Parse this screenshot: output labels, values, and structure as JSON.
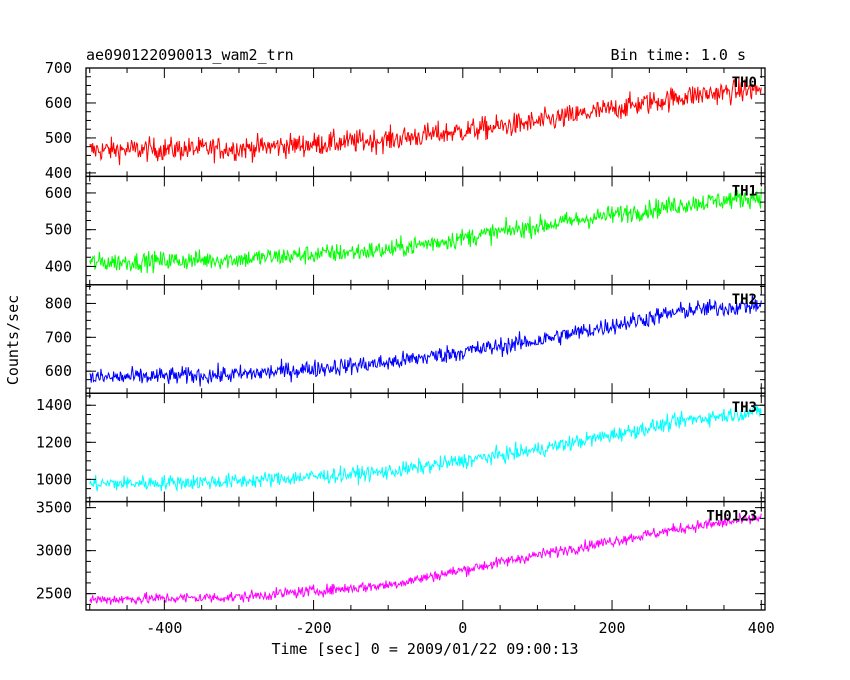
{
  "header": {
    "title": "ae090122090013_wam2_trn",
    "bin_time": "Bin time: 1.0 s"
  },
  "chart_data": {
    "type": "line",
    "title": "ae090122090013_wam2_trn",
    "xlabel": "Time [sec] 0 = 2009/01/22 09:00:13",
    "ylabel": "Counts/sec",
    "xlim": [
      -505,
      405
    ],
    "x_ticks": [
      -400,
      -200,
      0,
      200,
      400
    ],
    "x_range": [
      -500,
      400
    ],
    "bin_time_s": 1.0,
    "series": [
      {
        "name": "TH0",
        "color": "#ff0000",
        "ylim": [
          390,
          700
        ],
        "y_ticks": [
          400,
          500,
          600,
          700
        ],
        "trend": [
          [
            -500,
            465
          ],
          [
            -300,
            470
          ],
          [
            -100,
            495
          ],
          [
            100,
            545
          ],
          [
            300,
            620
          ],
          [
            400,
            640
          ]
        ],
        "noise": 28
      },
      {
        "name": "TH1",
        "color": "#00ff00",
        "ylim": [
          350,
          645
        ],
        "y_ticks": [
          400,
          500,
          600
        ],
        "trend": [
          [
            -500,
            410
          ],
          [
            -300,
            420
          ],
          [
            -100,
            445
          ],
          [
            100,
            510
          ],
          [
            300,
            570
          ],
          [
            400,
            590
          ]
        ],
        "noise": 22
      },
      {
        "name": "TH2",
        "color": "#0000ff",
        "ylim": [
          535,
          855
        ],
        "y_ticks": [
          600,
          700,
          800
        ],
        "trend": [
          [
            -500,
            580
          ],
          [
            -300,
            590
          ],
          [
            -100,
            625
          ],
          [
            100,
            690
          ],
          [
            300,
            780
          ],
          [
            400,
            795
          ]
        ],
        "noise": 22
      },
      {
        "name": "TH3",
        "color": "#00ffff",
        "ylim": [
          880,
          1465
        ],
        "y_ticks": [
          1000,
          1200,
          1400
        ],
        "trend": [
          [
            -500,
            975
          ],
          [
            -300,
            990
          ],
          [
            -100,
            1040
          ],
          [
            100,
            1160
          ],
          [
            300,
            1320
          ],
          [
            400,
            1370
          ]
        ],
        "noise": 35
      },
      {
        "name": "TH0123",
        "color": "#ff00ff",
        "ylim": [
          2310,
          3570
        ],
        "y_ticks": [
          2500,
          3000,
          3500
        ],
        "trend": [
          [
            -500,
            2430
          ],
          [
            -300,
            2460
          ],
          [
            -100,
            2600
          ],
          [
            100,
            2950
          ],
          [
            300,
            3270
          ],
          [
            400,
            3380
          ]
        ],
        "noise": 55
      }
    ]
  }
}
